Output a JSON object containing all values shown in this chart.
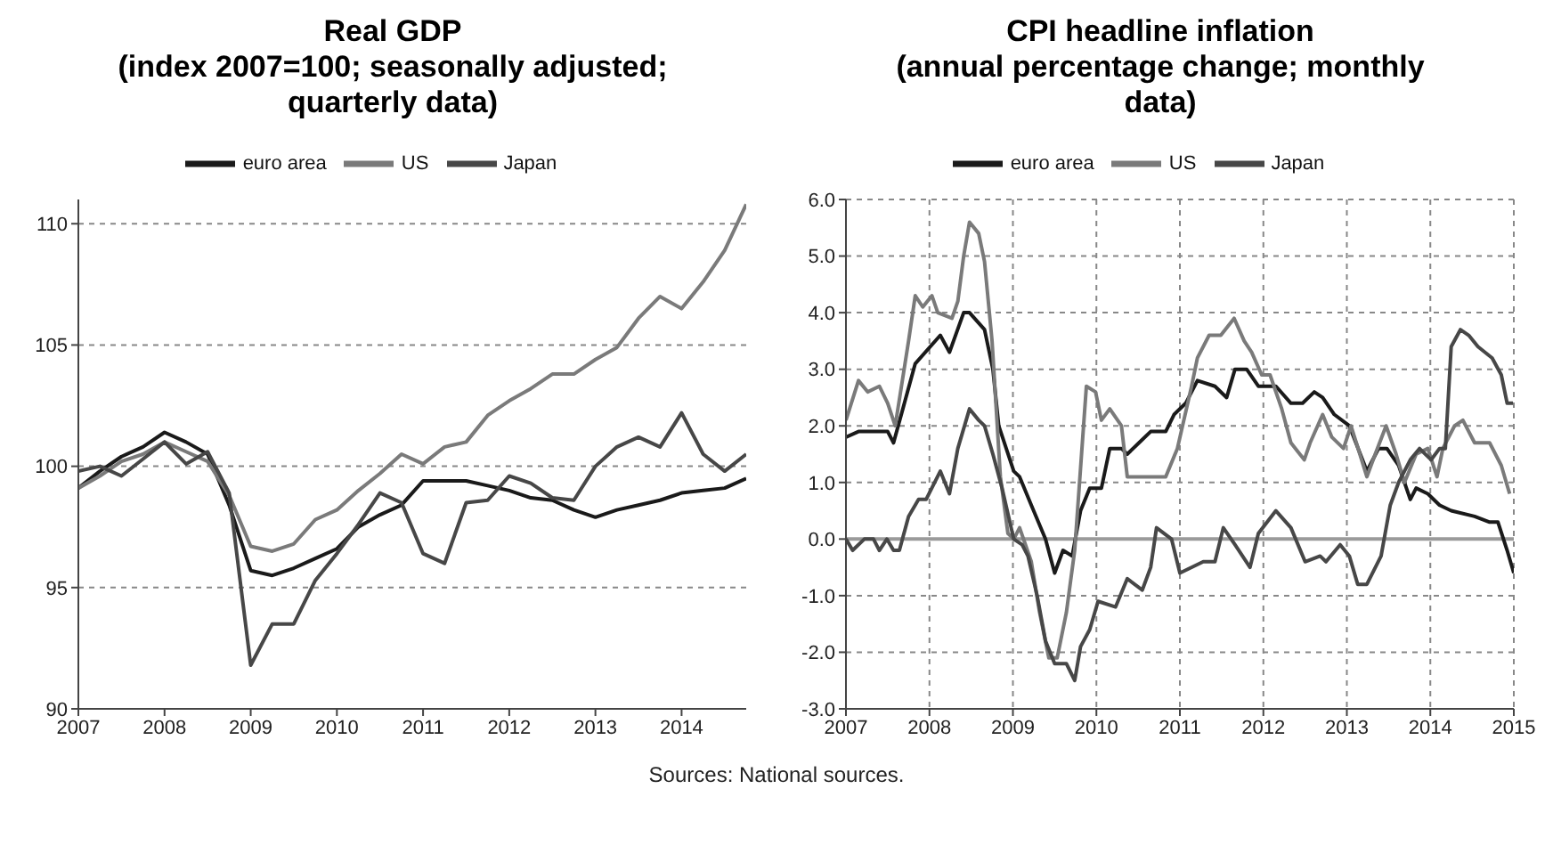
{
  "chart_data": [
    {
      "type": "line",
      "title": "Real GDP",
      "subtitle": "(index 2007=100; seasonally adjusted; quarterly data)",
      "legend": "top",
      "grid": "y",
      "xlim": [
        2007,
        2014.75
      ],
      "xticks": [
        2007,
        2008,
        2009,
        2010,
        2011,
        2012,
        2013,
        2014
      ],
      "ylim": [
        90,
        111
      ],
      "yticks": [
        90,
        95,
        100,
        105,
        110
      ],
      "series": [
        {
          "name": "euro area",
          "color": "#1a1a1a",
          "x": [
            2007,
            2007.25,
            2007.5,
            2007.75,
            2008,
            2008.25,
            2008.5,
            2008.75,
            2009,
            2009.25,
            2009.5,
            2009.75,
            2010,
            2010.25,
            2010.5,
            2010.75,
            2011,
            2011.25,
            2011.5,
            2011.75,
            2012,
            2012.25,
            2012.5,
            2012.75,
            2013,
            2013.25,
            2013.5,
            2013.75,
            2014,
            2014.25,
            2014.5,
            2014.75
          ],
          "values": [
            99.1,
            99.8,
            100.4,
            100.8,
            101.4,
            101.0,
            100.5,
            98.4,
            95.7,
            95.5,
            95.8,
            96.2,
            96.6,
            97.5,
            98.0,
            98.4,
            99.4,
            99.4,
            99.4,
            99.2,
            99.0,
            98.7,
            98.6,
            98.2,
            97.9,
            98.2,
            98.4,
            98.6,
            98.9,
            99.0,
            99.1,
            99.5
          ]
        },
        {
          "name": "US",
          "color": "#7a7a7a",
          "x": [
            2007,
            2007.25,
            2007.5,
            2007.75,
            2008,
            2008.25,
            2008.5,
            2008.75,
            2009,
            2009.25,
            2009.5,
            2009.75,
            2010,
            2010.25,
            2010.5,
            2010.75,
            2011,
            2011.25,
            2011.5,
            2011.75,
            2012,
            2012.25,
            2012.5,
            2012.75,
            2013,
            2013.25,
            2013.5,
            2013.75,
            2014,
            2014.25,
            2014.5,
            2014.75
          ],
          "values": [
            99.1,
            99.6,
            100.2,
            100.5,
            101.0,
            100.6,
            100.2,
            98.8,
            96.7,
            96.5,
            96.8,
            97.8,
            98.2,
            99.0,
            99.7,
            100.5,
            100.1,
            100.8,
            101.0,
            102.1,
            102.7,
            103.2,
            103.8,
            103.8,
            104.4,
            104.9,
            106.1,
            107.0,
            106.5,
            107.6,
            108.9,
            110.8
          ]
        },
        {
          "name": "Japan",
          "color": "#474747",
          "x": [
            2007,
            2007.25,
            2007.5,
            2007.75,
            2008,
            2008.25,
            2008.5,
            2008.75,
            2009,
            2009.25,
            2009.5,
            2009.75,
            2010,
            2010.25,
            2010.5,
            2010.75,
            2011,
            2011.25,
            2011.5,
            2011.75,
            2012,
            2012.25,
            2012.5,
            2012.75,
            2013,
            2013.25,
            2013.5,
            2013.75,
            2014,
            2014.25,
            2014.5,
            2014.75
          ],
          "values": [
            99.8,
            100.0,
            99.6,
            100.3,
            101.0,
            100.1,
            100.6,
            98.9,
            91.8,
            93.5,
            93.5,
            95.3,
            96.4,
            97.6,
            98.9,
            98.5,
            96.4,
            96.0,
            98.5,
            98.6,
            99.6,
            99.3,
            98.7,
            98.6,
            100.0,
            100.8,
            101.2,
            100.8,
            102.2,
            100.5,
            99.8,
            100.5
          ]
        }
      ]
    },
    {
      "type": "line",
      "title": "CPI headline inflation",
      "subtitle": "(annual percentage change; monthly data)",
      "legend": "top",
      "grid": true,
      "xlim": [
        2007,
        2015
      ],
      "xticks": [
        2007,
        2008,
        2009,
        2010,
        2011,
        2012,
        2013,
        2014,
        2015
      ],
      "ylim": [
        -3,
        6
      ],
      "yticks": [
        {
          "value": -3,
          "label": "-3.0"
        },
        {
          "value": -2,
          "label": "-2.0"
        },
        {
          "value": -1,
          "label": "-1.0"
        },
        {
          "value": 0,
          "label": "0.0"
        },
        {
          "value": 1,
          "label": "1.0"
        },
        {
          "value": 2,
          "label": "2.0"
        },
        {
          "value": 3,
          "label": "3.0"
        },
        {
          "value": 4,
          "label": "4.0"
        },
        {
          "value": 5,
          "label": "5.0"
        },
        {
          "value": 6,
          "label": "6.0"
        }
      ],
      "ref_lines": [
        {
          "axis": "y",
          "value": 0,
          "color": "#9a9a9a"
        }
      ],
      "annotations": [
        "Sources: National sources."
      ],
      "series": [
        {
          "name": "euro area",
          "color": "#1a1a1a",
          "x": [
            2007.0,
            2007.15,
            2007.33,
            2007.5,
            2007.57,
            2007.83,
            2008.13,
            2008.24,
            2008.41,
            2008.48,
            2008.66,
            2008.76,
            2008.83,
            2009.01,
            2009.08,
            2009.22,
            2009.39,
            2009.5,
            2009.6,
            2009.71,
            2009.81,
            2009.92,
            2010.06,
            2010.16,
            2010.3,
            2010.37,
            2010.51,
            2010.65,
            2010.83,
            2010.93,
            2011.07,
            2011.21,
            2011.42,
            2011.56,
            2011.66,
            2011.8,
            2011.94,
            2012.15,
            2012.33,
            2012.47,
            2012.61,
            2012.71,
            2012.85,
            2013.03,
            2013.24,
            2013.38,
            2013.48,
            2013.62,
            2013.76,
            2013.83,
            2013.97,
            2014.11,
            2014.25,
            2014.53,
            2014.71,
            2014.81,
            2014.92,
            2015.0
          ],
          "values": [
            1.8,
            1.9,
            1.9,
            1.9,
            1.7,
            3.1,
            3.6,
            3.3,
            4.0,
            4.0,
            3.7,
            3.0,
            2.0,
            1.2,
            1.1,
            0.6,
            0.0,
            -0.6,
            -0.2,
            -0.3,
            0.5,
            0.9,
            0.9,
            1.6,
            1.6,
            1.5,
            1.7,
            1.9,
            1.9,
            2.2,
            2.4,
            2.8,
            2.7,
            2.5,
            3.0,
            3.0,
            2.7,
            2.7,
            2.4,
            2.4,
            2.6,
            2.5,
            2.2,
            2.0,
            1.2,
            1.6,
            1.6,
            1.3,
            0.7,
            0.9,
            0.8,
            0.6,
            0.5,
            0.4,
            0.3,
            0.3,
            -0.2,
            -0.6
          ]
        },
        {
          "name": "US",
          "color": "#7a7a7a",
          "x": [
            2007.0,
            2007.15,
            2007.26,
            2007.4,
            2007.5,
            2007.59,
            2007.75,
            2007.83,
            2007.92,
            2008.03,
            2008.1,
            2008.27,
            2008.34,
            2008.41,
            2008.48,
            2008.59,
            2008.66,
            2008.75,
            2008.85,
            2008.94,
            2009.01,
            2009.08,
            2009.22,
            2009.32,
            2009.43,
            2009.53,
            2009.64,
            2009.74,
            2009.88,
            2009.99,
            2010.06,
            2010.16,
            2010.3,
            2010.37,
            2010.55,
            2010.83,
            2010.97,
            2011.14,
            2011.21,
            2011.35,
            2011.49,
            2011.65,
            2011.77,
            2011.86,
            2011.98,
            2012.08,
            2012.22,
            2012.33,
            2012.49,
            2012.56,
            2012.71,
            2012.82,
            2012.96,
            2013.05,
            2013.24,
            2013.34,
            2013.47,
            2013.59,
            2013.69,
            2013.83,
            2013.97,
            2014.08,
            2014.15,
            2014.29,
            2014.39,
            2014.53,
            2014.71,
            2014.85,
            2014.95
          ],
          "values": [
            2.1,
            2.8,
            2.6,
            2.7,
            2.4,
            2.0,
            3.5,
            4.3,
            4.1,
            4.3,
            4.0,
            3.9,
            4.2,
            5.0,
            5.6,
            5.4,
            4.9,
            3.5,
            1.1,
            0.1,
            0.0,
            0.2,
            -0.4,
            -1.3,
            -2.1,
            -2.1,
            -1.3,
            -0.2,
            2.7,
            2.6,
            2.1,
            2.3,
            2.0,
            1.1,
            1.1,
            1.1,
            1.6,
            2.7,
            3.2,
            3.6,
            3.6,
            3.9,
            3.5,
            3.3,
            2.9,
            2.9,
            2.3,
            1.7,
            1.4,
            1.7,
            2.2,
            1.8,
            1.6,
            2.0,
            1.1,
            1.5,
            2.0,
            1.5,
            1.0,
            1.5,
            1.6,
            1.1,
            1.6,
            2.0,
            2.1,
            1.7,
            1.7,
            1.3,
            0.8
          ]
        },
        {
          "name": "Japan",
          "color": "#474747",
          "x": [
            2007.0,
            2007.08,
            2007.22,
            2007.33,
            2007.4,
            2007.49,
            2007.57,
            2007.64,
            2007.75,
            2007.87,
            2007.96,
            2008.13,
            2008.24,
            2008.34,
            2008.48,
            2008.59,
            2008.66,
            2008.76,
            2008.87,
            2009.01,
            2009.11,
            2009.18,
            2009.29,
            2009.39,
            2009.5,
            2009.64,
            2009.74,
            2009.81,
            2009.92,
            2010.02,
            2010.23,
            2010.37,
            2010.55,
            2010.65,
            2010.72,
            2010.9,
            2011.0,
            2011.28,
            2011.42,
            2011.52,
            2011.66,
            2011.84,
            2011.94,
            2012.15,
            2012.33,
            2012.5,
            2012.68,
            2012.75,
            2012.92,
            2013.03,
            2013.13,
            2013.24,
            2013.41,
            2013.52,
            2013.62,
            2013.76,
            2013.87,
            2014.01,
            2014.11,
            2014.18,
            2014.25,
            2014.36,
            2014.46,
            2014.57,
            2014.74,
            2014.85,
            2014.92,
            2014.99
          ],
          "values": [
            0.0,
            -0.2,
            0.0,
            0.0,
            -0.2,
            0.0,
            -0.2,
            -0.2,
            0.4,
            0.7,
            0.7,
            1.2,
            0.8,
            1.6,
            2.3,
            2.1,
            2.0,
            1.5,
            0.9,
            0.0,
            -0.1,
            -0.3,
            -1.0,
            -1.8,
            -2.2,
            -2.2,
            -2.5,
            -1.9,
            -1.6,
            -1.1,
            -1.2,
            -0.7,
            -0.9,
            -0.5,
            0.2,
            0.0,
            -0.6,
            -0.4,
            -0.4,
            0.2,
            -0.1,
            -0.5,
            0.1,
            0.5,
            0.2,
            -0.4,
            -0.3,
            -0.4,
            -0.1,
            -0.3,
            -0.8,
            -0.8,
            -0.3,
            0.6,
            1.0,
            1.4,
            1.6,
            1.4,
            1.6,
            1.6,
            3.4,
            3.7,
            3.6,
            3.4,
            3.2,
            2.9,
            2.4,
            2.4
          ]
        }
      ]
    }
  ]
}
